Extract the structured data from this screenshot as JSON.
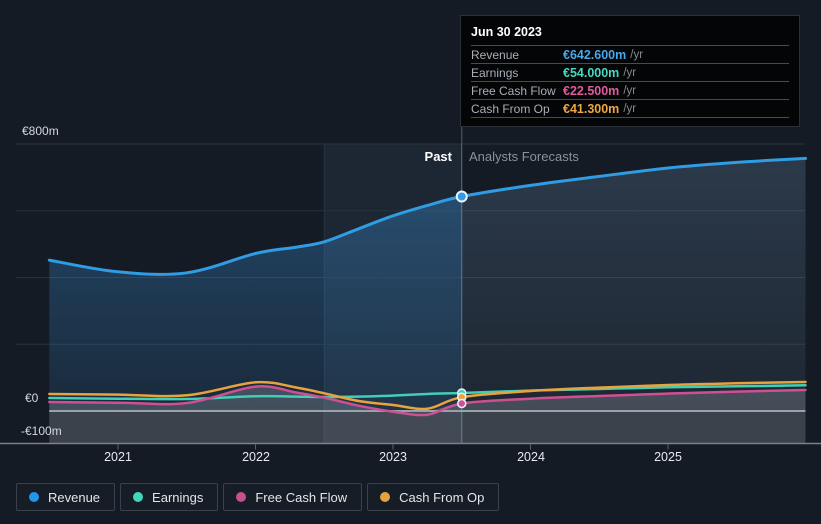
{
  "tooltip": {
    "date": "Jun 30 2023",
    "rows": [
      {
        "label": "Revenue",
        "value": "€642.600m",
        "suffix": "/yr",
        "color": "#45a9ea"
      },
      {
        "label": "Earnings",
        "value": "€54.000m",
        "suffix": "/yr",
        "color": "#48d8c0"
      },
      {
        "label": "Free Cash Flow",
        "value": "€22.500m",
        "suffix": "/yr",
        "color": "#e25a9e"
      },
      {
        "label": "Cash From Op",
        "value": "€41.300m",
        "suffix": "/yr",
        "color": "#efa742"
      }
    ]
  },
  "phase_labels": {
    "past": "Past",
    "forecast": "Analysts Forecasts"
  },
  "y_axis": [
    "€800m",
    "€0",
    "-€100m"
  ],
  "x_axis": [
    "2021",
    "2022",
    "2023",
    "2024",
    "2025"
  ],
  "legend": {
    "items": [
      {
        "label": "Revenue",
        "color": "#2196ea"
      },
      {
        "label": "Earnings",
        "color": "#41d6ba"
      },
      {
        "label": "Free Cash Flow",
        "color": "#c64f8d"
      },
      {
        "label": "Cash From Op",
        "color": "#e5a33e"
      }
    ]
  },
  "chart_data": {
    "type": "line",
    "title": "Past and Analysts Forecasts of Revenue, Earnings and Cash Flows (€m, /yr)",
    "unit": "€m",
    "ylim": [
      -100,
      800
    ],
    "y_gridlines": [
      800,
      600,
      400,
      200
    ],
    "zero_line": 0,
    "x_ticks": [
      2021,
      2022,
      2023,
      2024,
      2025
    ],
    "x_domain": [
      2020.5,
      2026
    ],
    "divider_x": 2023.5,
    "divider_date": "Jun 30 2023",
    "highlight_band": [
      2022.5,
      2023.5
    ],
    "legend_position": "bottom",
    "x": [
      2020.5,
      2021,
      2021.5,
      2022,
      2022.3,
      2022.5,
      2022.75,
      2023,
      2023.25,
      2023.5,
      2024,
      2024.5,
      2025,
      2025.5,
      2026
    ],
    "series": [
      {
        "name": "Revenue",
        "color": "#2f9ce3",
        "width": 3,
        "values": [
          452,
          417,
          414,
          472,
          491,
          507,
          546,
          585,
          616,
          642.6,
          676,
          703,
          728,
          745,
          757
        ]
      },
      {
        "name": "Earnings",
        "color": "#41cfb5",
        "width": 2.5,
        "values": [
          39,
          37,
          36,
          44,
          43,
          42,
          43,
          46,
          51,
          54,
          61,
          66,
          71,
          74,
          77
        ]
      },
      {
        "name": "Free Cash Flow",
        "color": "#ce5092",
        "width": 2.5,
        "values": [
          27,
          25,
          24,
          73,
          55,
          40,
          16,
          -2,
          -11,
          22.5,
          37,
          45,
          52,
          58,
          63
        ]
      },
      {
        "name": "Cash From Op",
        "color": "#e7a33e",
        "width": 2.5,
        "values": [
          51,
          49,
          47,
          86,
          70,
          53,
          30,
          18,
          7,
          41.3,
          60,
          70,
          78,
          83,
          87
        ]
      }
    ]
  }
}
